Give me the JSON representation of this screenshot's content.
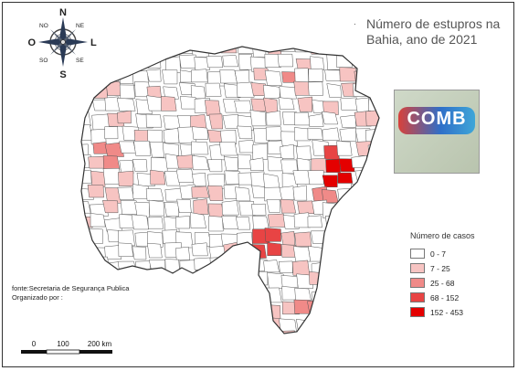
{
  "title": {
    "line1": "Número de estupros na",
    "line2": "Bahia, ano de 2021",
    "marker": "."
  },
  "compass": {
    "north": "N",
    "south": "S",
    "east": "L",
    "west": "O",
    "ne": "NE",
    "no": "NO",
    "se": "SE",
    "so": "SO"
  },
  "legend": {
    "title": "Número de casos",
    "classes": [
      {
        "label": "0 - 7",
        "color": "#ffffff"
      },
      {
        "label": "7 - 25",
        "color": "#f7c4c2"
      },
      {
        "label": "25 - 68",
        "color": "#f08a88"
      },
      {
        "label": "68 - 152",
        "color": "#e84444"
      },
      {
        "label": "152 - 453",
        "color": "#e40000"
      }
    ]
  },
  "source": {
    "line1": "fonte:Secretaria de Segurança Publica",
    "line2": "Organizado por :"
  },
  "scale": {
    "labels": [
      "0",
      "100",
      "200 km"
    ]
  },
  "logo": {
    "text": "COMB",
    "tagline_top": "",
    "tagline_mid": "",
    "tagline_bottom": ""
  }
}
